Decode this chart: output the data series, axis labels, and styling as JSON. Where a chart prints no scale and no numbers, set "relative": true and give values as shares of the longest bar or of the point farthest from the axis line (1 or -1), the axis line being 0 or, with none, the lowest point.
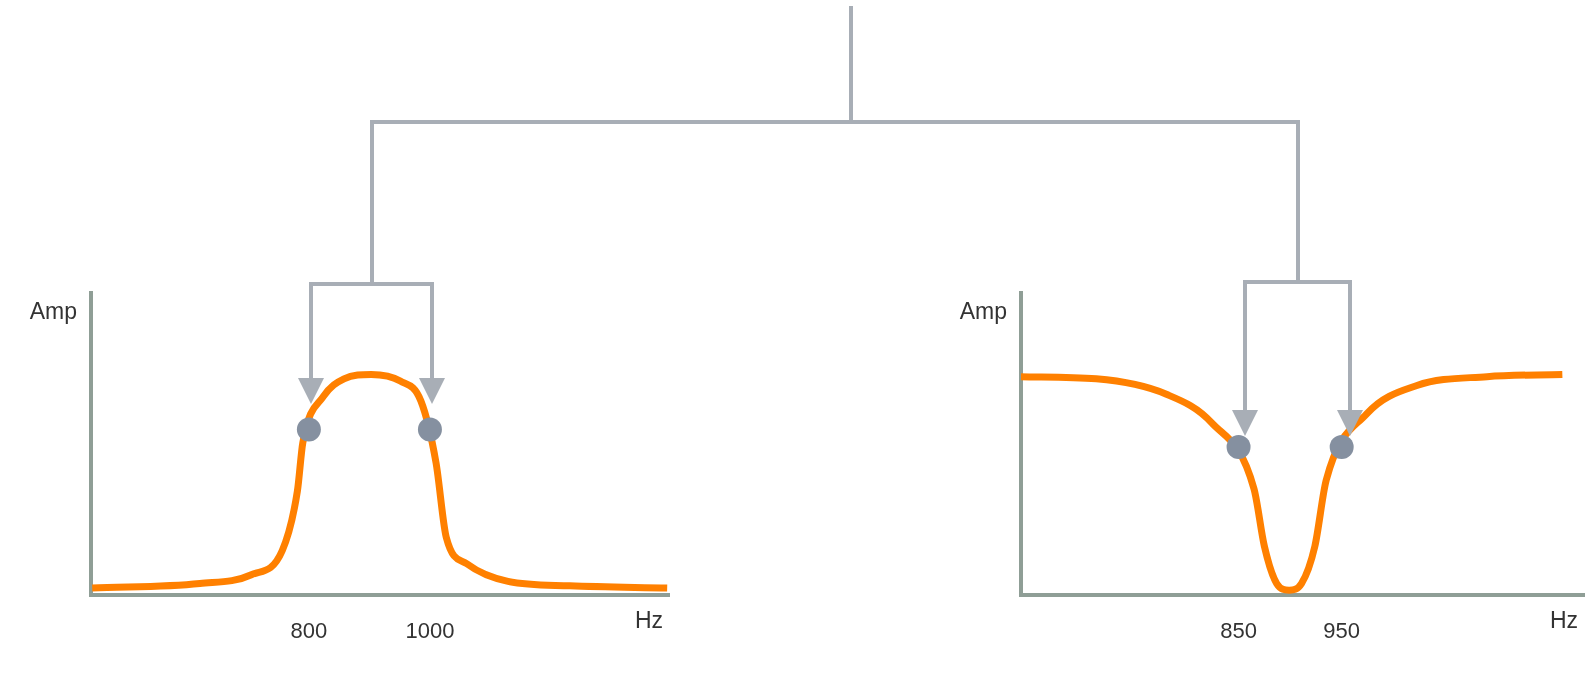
{
  "chart_data": [
    {
      "type": "line",
      "xlabel": "Hz",
      "ylabel": "Amp",
      "relative": true,
      "grid": false,
      "legend": false,
      "xlim": [
        440,
        1395
      ],
      "xticks": [
        800,
        1000
      ],
      "series": [
        {
          "type": "line",
          "color": "#ff8000",
          "marker": "none",
          "x": [
            442,
            620,
            705,
            756,
            781,
            790,
            824,
            858,
            903,
            951,
            985,
            1010,
            1027,
            1061,
            1129,
            1231,
            1392
          ],
          "values": [
            0.03,
            0.05,
            0.09,
            0.2,
            0.47,
            0.69,
            0.9,
            0.98,
            1,
            0.97,
            0.88,
            0.6,
            0.26,
            0.14,
            0.06,
            0.04,
            0.03
          ]
        },
        {
          "type": "scatter",
          "color": "#8590a0",
          "marker": "circle",
          "x": [
            800,
            1000
          ],
          "values": [
            0.75,
            0.75
          ]
        }
      ]
    },
    {
      "type": "line",
      "xlabel": "Hz",
      "ylabel": "Amp",
      "relative": true,
      "grid": false,
      "legend": false,
      "xlim": [
        639,
        1185
      ],
      "xticks": [
        850,
        950
      ],
      "series": [
        {
          "type": "line",
          "color": "#ff8000",
          "marker": "none",
          "x": [
            639,
            712,
            780,
            824,
            865,
            875,
            887,
            899,
            911,
            924,
            935,
            974,
            1023,
            1091,
            1164
          ],
          "values": [
            0.99,
            0.98,
            0.91,
            0.78,
            0.48,
            0.22,
            0.05,
            0.02,
            0.05,
            0.22,
            0.52,
            0.82,
            0.95,
            0.99,
            1
          ]
        },
        {
          "type": "scatter",
          "color": "#8590a0",
          "marker": "circle",
          "x": [
            850,
            950
          ],
          "values": [
            0.67,
            0.67
          ]
        }
      ]
    }
  ]
}
